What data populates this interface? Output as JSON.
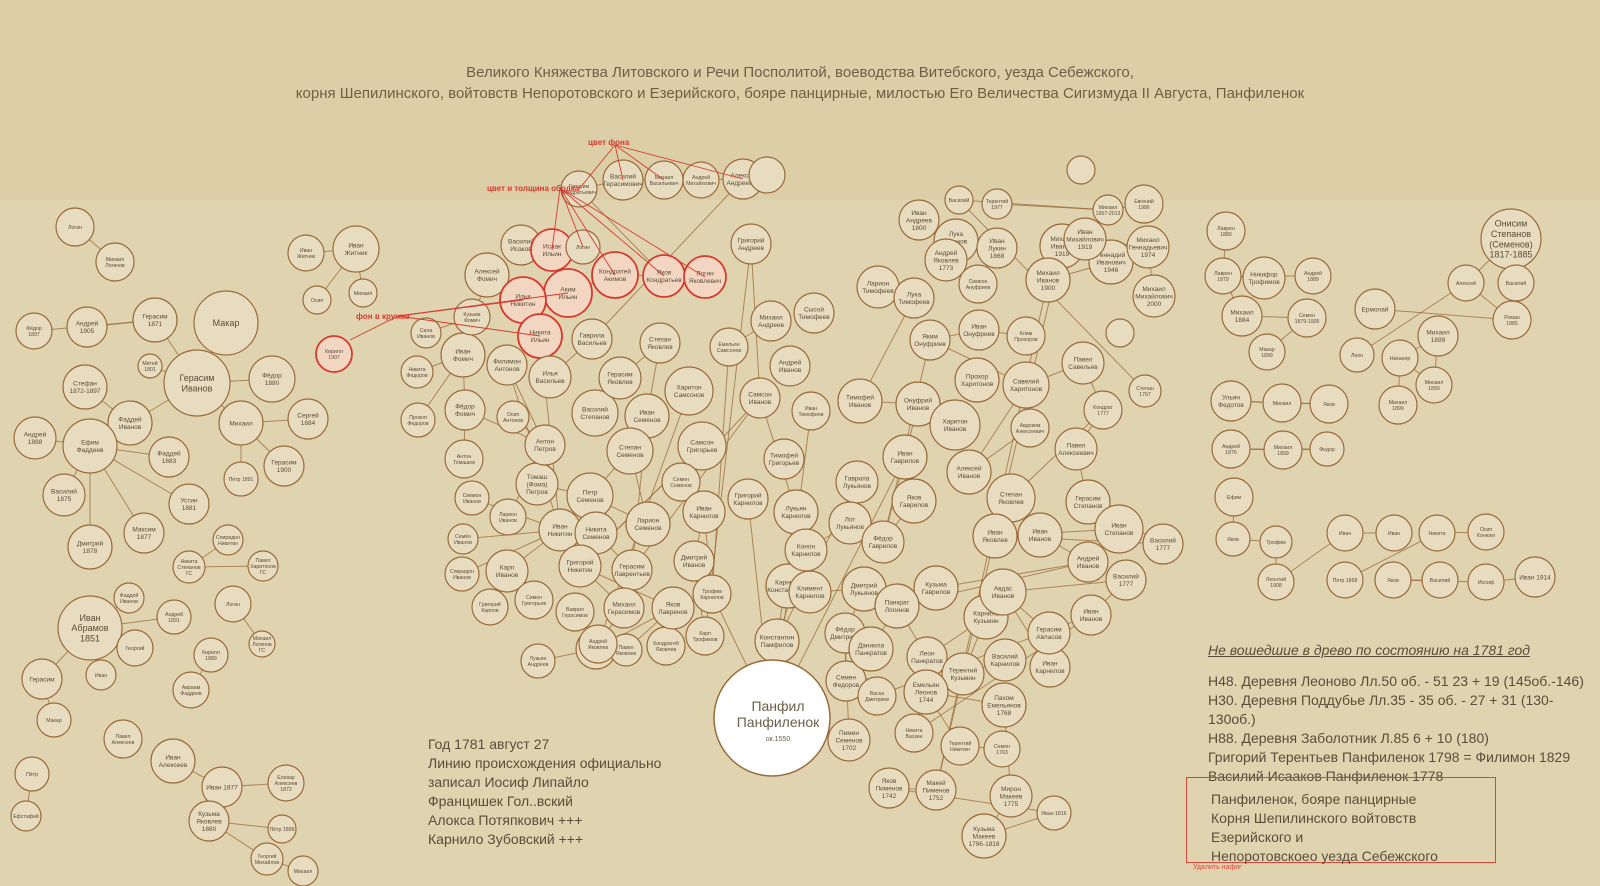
{
  "title": {
    "line1": "Великого Княжества Литовского и Речи Посполитой, воеводства Витебского, уезда Себежского,",
    "line2": "корня Шепилинского, войтовств Непоротовского и Езерийского, бояре панцирные, милостью Его Величества Сигизмуда II Августа, Панфиленок"
  },
  "annotations": {
    "bg_color": "цвет фона",
    "rim_color": "цвет и толщина ободка",
    "circle_bg": "фон в кружке"
  },
  "root": {
    "name_line1": "Панфил",
    "name_line2": "Панфиленок",
    "sub": "ок.1550"
  },
  "nodes": [
    [
      "Логин",
      ""
    ],
    [
      "Михаил Логинов",
      ""
    ],
    [
      "Фёдор 1897",
      ""
    ],
    [
      "Андрей 1905",
      ""
    ],
    [
      "Герасим 1871",
      ""
    ],
    [
      "Макар",
      ""
    ],
    [
      "Митей 1801",
      ""
    ],
    [
      "Герасим Иванов",
      ""
    ],
    [
      "Фёдор 1880",
      ""
    ],
    [
      "Стефан 1872-1897",
      ""
    ],
    [
      "Фаддей Иванов",
      ""
    ],
    [
      "Андрей 1888",
      ""
    ],
    [
      "Ефим Фаддеев",
      ""
    ],
    [
      "Фаддей 1883",
      ""
    ],
    [
      "Михаил",
      ""
    ],
    [
      "Сергей 1884",
      ""
    ],
    [
      "Герасим 1900",
      ""
    ],
    [
      "Пётр 1891",
      ""
    ],
    [
      "Василий 1875",
      ""
    ],
    [
      "Устин 1881",
      ""
    ],
    [
      "Максим 1877",
      ""
    ],
    [
      "Дмитрий 1878",
      ""
    ],
    [
      "Спиридон Никитин",
      ""
    ],
    [
      "Никита Степанов ГС",
      ""
    ],
    [
      "Павел Харитонов ГС",
      ""
    ],
    [
      "Фаддей Иванов",
      ""
    ],
    [
      "Андрей 1891",
      ""
    ],
    [
      "Иван Абрамов 1851",
      ""
    ],
    [
      "Георгий",
      ""
    ],
    [
      "Логин",
      ""
    ],
    [
      "Михаил Логинов ГС",
      ""
    ],
    [
      "Кирилл 1889",
      ""
    ],
    [
      "Герасим",
      ""
    ],
    [
      "Иван",
      ""
    ],
    [
      "Авраам Фаддеев",
      ""
    ],
    [
      "Макар",
      ""
    ],
    [
      "Павел Алексеев",
      ""
    ],
    [
      "Пётр",
      ""
    ],
    [
      "Иван Алексеев",
      ""
    ],
    [
      "Иван 1877",
      ""
    ],
    [
      "Елизар Алексеев 1872",
      ""
    ],
    [
      "Кузьма Яковлев 1860",
      ""
    ],
    [
      "Пётр 1899",
      ""
    ],
    [
      "Георгий Михайлов",
      ""
    ],
    [
      "Михаил",
      ""
    ],
    [
      "Ефстафий",
      ""
    ],
    [
      "Иван Житник",
      ""
    ],
    [
      "Иван Житник",
      ""
    ],
    [
      "Осип",
      ""
    ],
    [
      "Михаил",
      ""
    ],
    [
      "Кирилл 1907",
      ""
    ],
    [
      "Алексей Фомич",
      ""
    ],
    [
      "Иван Фомич",
      ""
    ],
    [
      "Кузьма Фомич",
      ""
    ],
    [
      "Сила Иванов",
      ""
    ],
    [
      "Никита Федоров",
      ""
    ],
    [
      "Прокоп Федоров",
      ""
    ],
    [
      "Фёдор Фомич",
      ""
    ],
    [
      "Антон Томашев",
      ""
    ],
    [
      "Симион Иванов",
      ""
    ],
    [
      "Семён Иванов",
      ""
    ],
    [
      "Спиридон Иванов",
      ""
    ],
    [
      "Филимон Антонов",
      ""
    ],
    [
      "Осип Антонов",
      ""
    ],
    [
      "Ларион Иванов",
      ""
    ],
    [
      "Томаш (Фома) Петров",
      ""
    ],
    [
      "Антон Петров",
      ""
    ],
    [
      "Иван Никитин",
      ""
    ],
    [
      "Карп Иванов",
      ""
    ],
    [
      "Григорий Карпов",
      ""
    ],
    [
      "Симон Григорьев",
      ""
    ],
    [
      "Лукьян Андреев",
      ""
    ],
    [
      "Андрей Яковлев",
      ""
    ],
    [
      "Павел Яковлев",
      ""
    ],
    [
      "Кондратей Яковлев",
      ""
    ],
    [
      "Василий Исаков",
      ""
    ],
    [
      "Исаак Ильин",
      ""
    ],
    [
      "Логин",
      ""
    ],
    [
      "Аким Ильин",
      ""
    ],
    [
      "Илья Никитин",
      ""
    ],
    [
      "Никита Ильин",
      ""
    ],
    [
      "Кондратей Акимов",
      ""
    ],
    [
      "Яков Кондратьев",
      ""
    ],
    [
      "Логин Яковлевич",
      ""
    ],
    [
      "Герасим Кондратьевич",
      ""
    ],
    [
      "Василий Герасимович",
      ""
    ],
    [
      "Михаил Васильевич",
      ""
    ],
    [
      "Андрей Михайлович",
      ""
    ],
    [
      "Алексей Андреевич",
      ""
    ],
    [
      "Гаврила Васильев",
      ""
    ],
    [
      "Илья Васильев",
      ""
    ],
    [
      "Василий Степанов",
      ""
    ],
    [
      "Герасим Яковлев",
      ""
    ],
    [
      "Степан Яковлев",
      ""
    ],
    [
      "Иван Семенов",
      ""
    ],
    [
      "Степан Семенов",
      ""
    ],
    [
      "Петр Семенов",
      ""
    ],
    [
      "Никита Семенов",
      ""
    ],
    [
      "Ларион Семенов",
      ""
    ],
    [
      "Герасим Лаврентьев",
      ""
    ],
    [
      "Григорий Никитин",
      ""
    ],
    [
      "Яков Лавренов",
      ""
    ],
    [
      "Михаил Герасимов",
      ""
    ],
    [
      "Андрей Яковлев",
      ""
    ],
    [
      "Ваврил Герасимов",
      ""
    ],
    [
      "Харитон Самсонов",
      ""
    ],
    [
      "Самсон Григорьев",
      ""
    ],
    [
      "Семен Семенов",
      ""
    ],
    [
      "Иван Карнилов",
      ""
    ],
    [
      "Дмитрий Иванов",
      ""
    ],
    [
      "Трофим Карнилов",
      ""
    ],
    [
      "Карп Трофимов",
      ""
    ],
    [
      "Емельян Самсонов",
      ""
    ],
    [
      "Самсон Иванов",
      ""
    ],
    [
      "Григорий Андреев",
      ""
    ],
    [
      "Михаил Андреев",
      ""
    ],
    [
      "Андрей Иванов",
      ""
    ],
    [
      "Сысой Тимофеев",
      ""
    ],
    [
      "Иван Тимофеев",
      ""
    ],
    [
      "Тимофей Григорьев",
      ""
    ],
    [
      "Григорий Карнилов",
      ""
    ],
    [
      "Лукьян Карнилов",
      ""
    ],
    [
      "Карнила Константинов",
      ""
    ],
    [
      "Константин Памфилов",
      ""
    ],
    [
      "Климент Карнилов",
      ""
    ],
    [
      "Конон Карнилов",
      ""
    ],
    [
      "Гаврила Лукьянов",
      ""
    ],
    [
      "Лот Лукьянов",
      ""
    ],
    [
      "Дмитрий Лукьянов",
      ""
    ],
    [
      "Фёдор Дмитриев",
      ""
    ],
    [
      "Семен Федоров",
      ""
    ],
    [
      "Пимен Семенов 1702",
      ""
    ],
    [
      "Ларион Тимофеев",
      ""
    ],
    [
      "Лука Тимофеев",
      ""
    ],
    [
      "Тимофей Иванов",
      ""
    ],
    [
      "Онуфрий Иванов",
      ""
    ],
    [
      "Иван Гаврилов",
      ""
    ],
    [
      "Яков Гаврилов",
      ""
    ],
    [
      "Фёдор Гаврилов",
      ""
    ],
    [
      "Иван Андреев 1800",
      ""
    ],
    [
      "Лука Иванов 1833",
      ""
    ],
    [
      "Андрей Яковлев 1773",
      ""
    ],
    [
      "Иван Лукин 1868",
      ""
    ],
    [
      "Симеон Ануфриев",
      ""
    ],
    [
      "Яким Онуфриев",
      ""
    ],
    [
      "Иван Онуфриев",
      ""
    ],
    [
      "Клим Прохоров",
      ""
    ],
    [
      "Прохор Харитонов",
      ""
    ],
    [
      "Харитон Иванов",
      ""
    ],
    [
      "Алексей Иванов",
      ""
    ],
    [
      "Авдоким Алексеевич",
      ""
    ],
    [
      "Савелий Харитонов",
      ""
    ],
    [
      "Павел Савельев",
      ""
    ],
    [
      "Кондрат 1777",
      ""
    ],
    [
      "Павел Алексеевич",
      ""
    ],
    [
      "Степан Яковлев",
      ""
    ],
    [
      "Герасим Степанов",
      ""
    ],
    [
      "Иван Яковлев",
      ""
    ],
    [
      "Иван Степанов",
      ""
    ],
    [
      "Василий 1777",
      ""
    ],
    [
      "Иван Иванов",
      ""
    ],
    [
      "Андрей Иванов",
      ""
    ],
    [
      "Кузьма Гаврилов",
      ""
    ],
    [
      "Панкрат Логинов",
      ""
    ],
    [
      "Даниила Панкратов",
      ""
    ],
    [
      "Леон Панкратов",
      ""
    ],
    [
      "Карнила Кузьмин",
      ""
    ],
    [
      "Терентий Кузьмин",
      ""
    ],
    [
      "Василий Карнилов",
      ""
    ],
    [
      "Иван Карнилов",
      ""
    ],
    [
      "Авдас Иванов",
      ""
    ],
    [
      "Герасим Авласов",
      ""
    ],
    [
      "Иван Иванов",
      ""
    ],
    [
      "Василий 1777",
      ""
    ],
    [
      "Васка Дмитриев",
      ""
    ],
    [
      "Никита Васкин",
      ""
    ],
    [
      "Емельян Леонов 1744",
      ""
    ],
    [
      "Терентий Никитин",
      ""
    ],
    [
      "Пахом Емельянов 1768",
      ""
    ],
    [
      "Семен 1763",
      ""
    ],
    [
      "Мирон Макеев 1775",
      ""
    ],
    [
      "Кузьма Макеев 1796-1818",
      ""
    ],
    [
      "Иван 1816",
      ""
    ],
    [
      "Яков Пименов 1742",
      ""
    ],
    [
      "Макей Пименов 1752",
      ""
    ],
    [
      "Михаил Иванов 1919",
      ""
    ],
    [
      "Михаил Иванов 1900",
      ""
    ],
    [
      "Геннадий Иванович 1946",
      ""
    ],
    [
      "Иван Михайлович 1919",
      ""
    ],
    [
      "Михаил Геннадьевич 1974",
      ""
    ],
    [
      "Михаил Михайлович 2000",
      ""
    ],
    [
      "Евгений 1986",
      ""
    ],
    [
      "Михаил 1957-2013",
      ""
    ],
    [
      "Василий",
      ""
    ],
    [
      "Терентий 1977",
      ""
    ],
    [
      "Степан 1767",
      ""
    ],
    [
      "Лаврен 1880",
      ""
    ],
    [
      "Лаврен 1879",
      ""
    ],
    [
      "Никифор Трофимов",
      ""
    ],
    [
      "Андрей 1889",
      ""
    ],
    [
      "Михаил 1884",
      ""
    ],
    [
      "Семен 1879-1905",
      ""
    ],
    [
      "Макар 1899",
      ""
    ],
    [
      "Онисим Степанов (Семенов) 1817-1885",
      ""
    ],
    [
      "Алексей",
      ""
    ],
    [
      "Василий",
      ""
    ],
    [
      "Роман 1885",
      ""
    ],
    [
      "Ермолай",
      ""
    ],
    [
      "Леон",
      ""
    ],
    [
      "Никанор",
      ""
    ],
    [
      "Михаил 1899",
      ""
    ],
    [
      "Михаил 1899",
      ""
    ],
    [
      "Михаил 1899",
      ""
    ],
    [
      "Ульян Федотов",
      ""
    ],
    [
      "Михаил",
      ""
    ],
    [
      "Яков",
      ""
    ],
    [
      "Андрей 1876",
      ""
    ],
    [
      "Михаил 1899",
      ""
    ],
    [
      "Федор",
      ""
    ],
    [
      "Ефим",
      ""
    ],
    [
      "Яков",
      ""
    ],
    [
      "Трофим",
      ""
    ],
    [
      "Леонтий 1908",
      ""
    ],
    [
      "Иван",
      ""
    ],
    [
      "Иван",
      ""
    ],
    [
      "Никита",
      ""
    ],
    [
      "Осип Конюхи",
      ""
    ],
    [
      "Петр 1868",
      ""
    ],
    [
      "Яков",
      ""
    ],
    [
      "Василий",
      ""
    ],
    [
      "Иосиф",
      ""
    ],
    [
      "Иван 1914",
      ""
    ]
  ],
  "notes": {
    "heading": "Не вошедшие в древо по состоянию на 1781 год",
    "lines": [
      "Н48. Деревня Леоново Лл.50 об. - 51 23 + 19 (145об.-146)",
      "Н30. Деревня Поддубье Лл.35 - 35 об. - 27 + 31 (130-130об.)",
      "Н88. Деревня Заболотник Л.85 6 + 10 (180)",
      "Григорий Терентьев Панфиленок 1798 = Филимон 1829",
      "Василий Исааков Панфиленок 1778"
    ]
  },
  "footer": {
    "lines": [
      "Год 1781 август 27",
      "Линию происхождения официально",
      "записал Иосиф Липайло",
      "Францишек Гол..вский",
      "Алокса Потяпкович +++",
      "Карнило Зубовский +++"
    ]
  },
  "stamp": {
    "lines": [
      "Панфиленок, бояре панцирные",
      "Корня Шепилинского войтовств Езерийского и",
      "Непоротовскоео уезда Себежского"
    ],
    "caption": "Удалить нафиг"
  },
  "colors": {
    "background": "#e0d4b0",
    "node_stroke": "#9a6a3a",
    "node_fill": "#e8dcc0",
    "highlight_fill": "#f2d6c2",
    "annotation": "#d63a2e",
    "text": "#5a4d3a"
  }
}
